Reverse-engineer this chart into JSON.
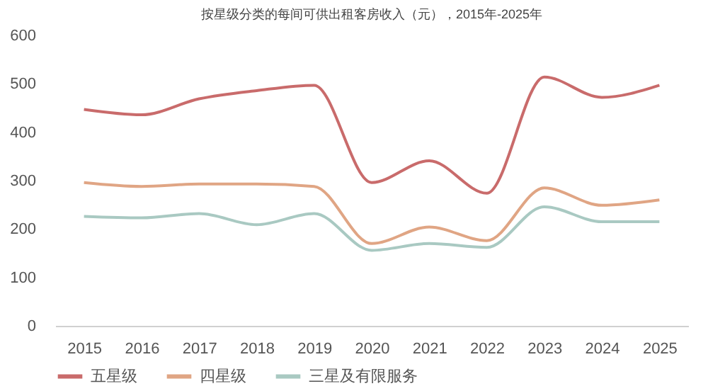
{
  "chart_data": {
    "type": "line",
    "title": "按星级分类的每间可供出租客房收入（元），2015年-2025年",
    "categories": [
      "2015",
      "2016",
      "2017",
      "2018",
      "2019",
      "2020",
      "2021",
      "2022",
      "2023",
      "2024",
      "2025"
    ],
    "series": [
      {
        "name": "五星级",
        "color": "#c96b6b",
        "values": [
          447,
          436,
          469,
          486,
          497,
          296,
          341,
          274,
          514,
          472,
          497
        ]
      },
      {
        "name": "四星级",
        "color": "#e0a584",
        "values": [
          296,
          288,
          293,
          293,
          288,
          170,
          204,
          176,
          285,
          249,
          260
        ]
      },
      {
        "name": "三星及有限服务",
        "color": "#a9c9c2",
        "values": [
          226,
          223,
          232,
          209,
          232,
          156,
          170,
          162,
          246,
          215,
          215
        ]
      }
    ],
    "ylim": [
      0,
      600
    ],
    "yticks": [
      0,
      100,
      200,
      300,
      400,
      500,
      600
    ],
    "grid": false,
    "legend": "bottom",
    "marker": "none",
    "line_style": "solid"
  }
}
